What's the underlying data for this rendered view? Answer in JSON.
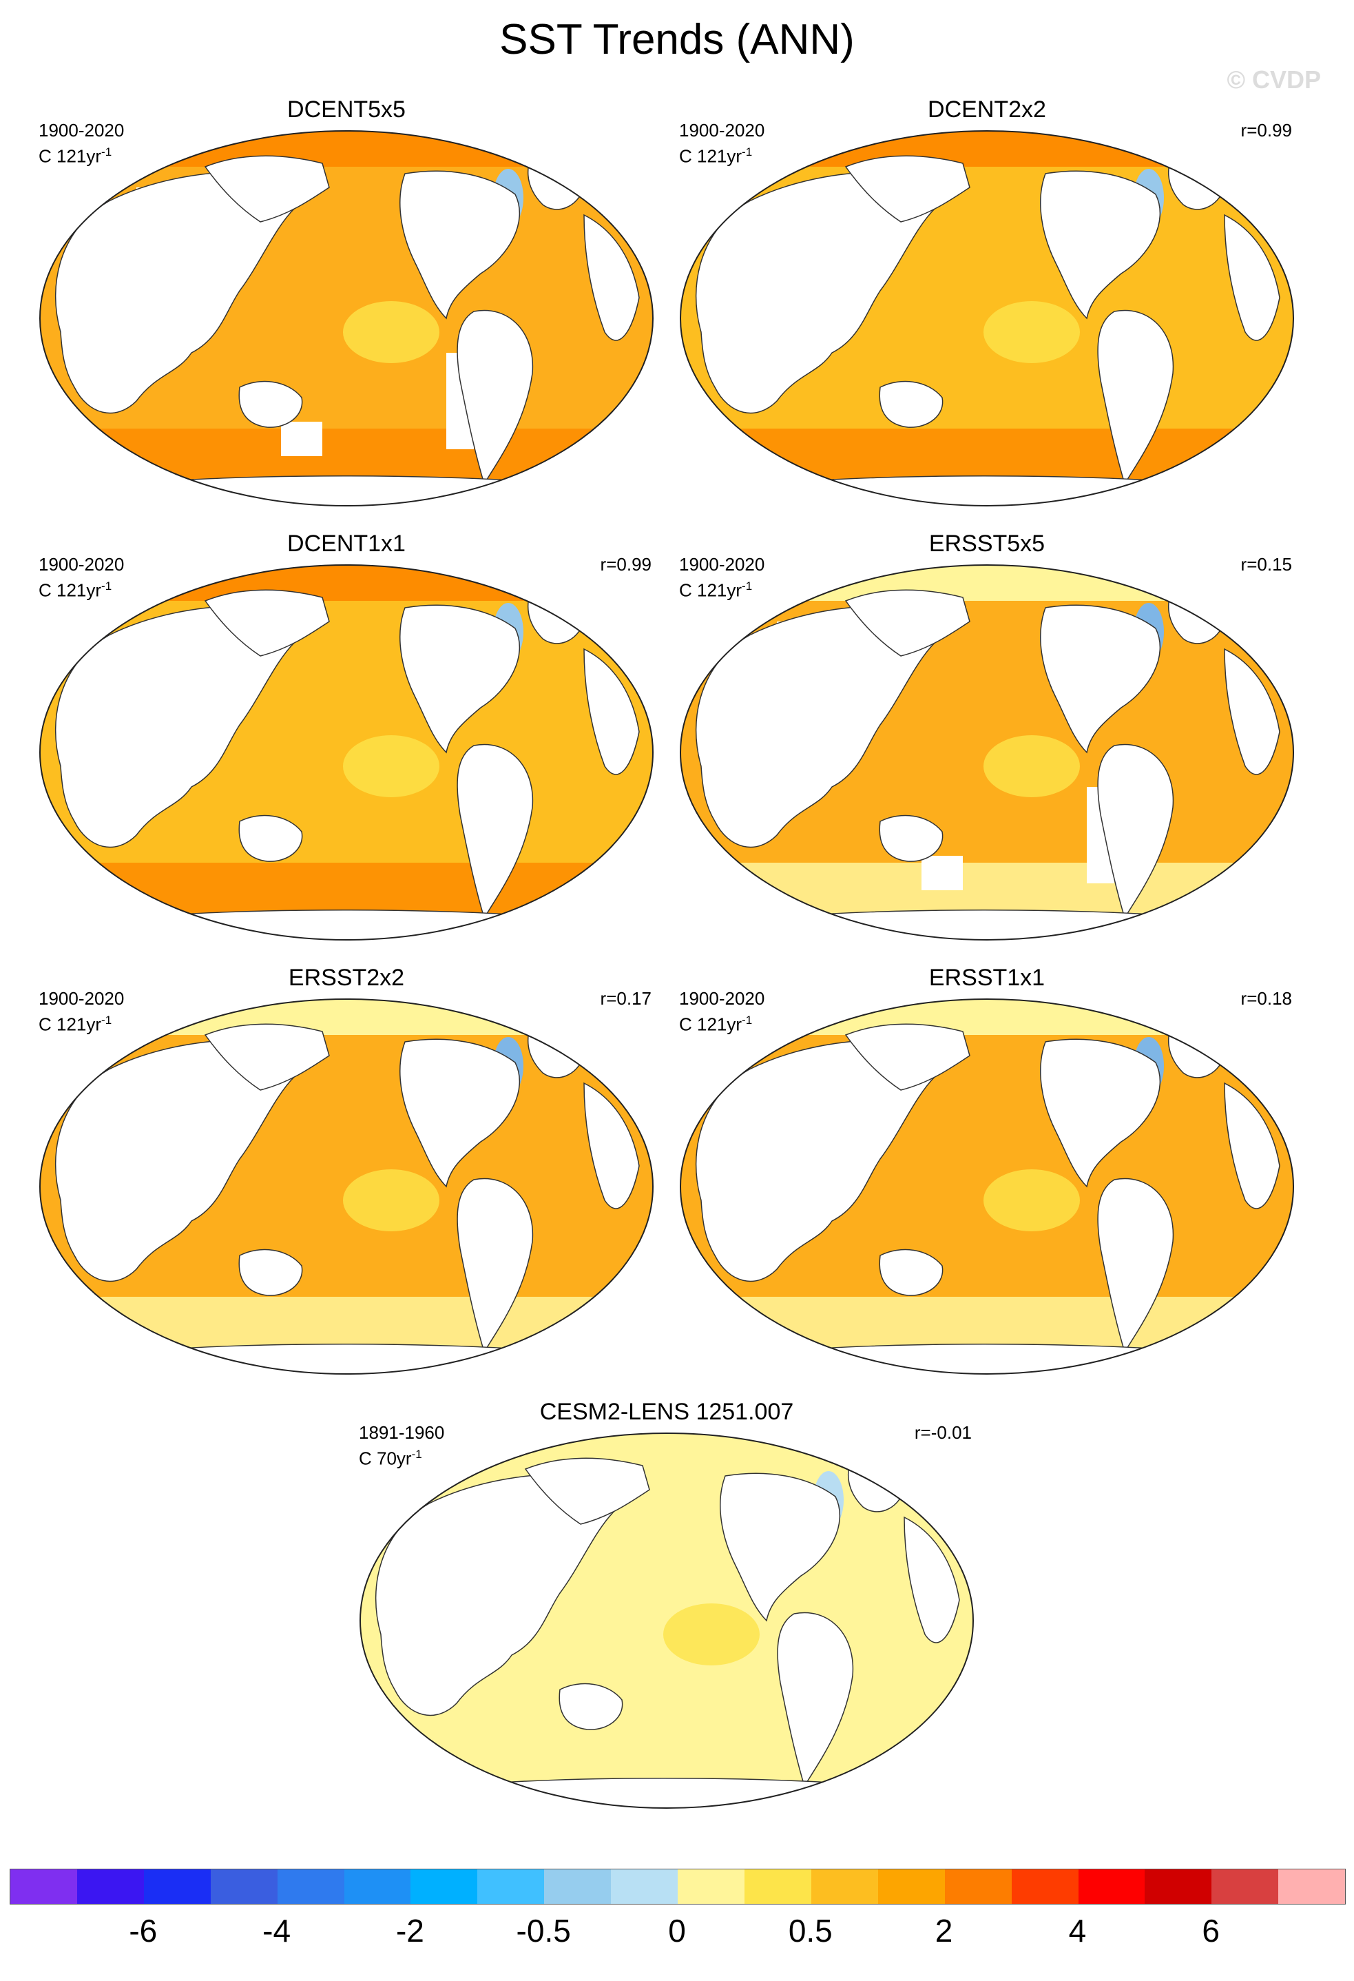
{
  "figure": {
    "title": "SST Trends (ANN)",
    "watermark": "© CVDP"
  },
  "panels": [
    {
      "name": "DCENT5x5",
      "period": "1900-2020",
      "units": "C 121yr",
      "units_sup": "-1",
      "corr": "",
      "fill": "#fdae1c",
      "mask": "coarse5",
      "arctic": "#fd8c00",
      "south": "#fd8c00",
      "blob": "#98c8ea"
    },
    {
      "name": "DCENT2x2",
      "period": "1900-2020",
      "units": "C 121yr",
      "units_sup": "-1",
      "corr": "r=0.99",
      "fill": "#fdbe20",
      "mask": "fine",
      "arctic": "#fd8c00",
      "south": "#fd8c00",
      "blob": "#98c8ea"
    },
    {
      "name": "DCENT1x1",
      "period": "1900-2020",
      "units": "C 121yr",
      "units_sup": "-1",
      "corr": "r=0.99",
      "fill": "#fdbe20",
      "mask": "fine",
      "arctic": "#fd8c00",
      "south": "#fd8c00",
      "blob": "#98c8ea"
    },
    {
      "name": "ERSST5x5",
      "period": "1900-2020",
      "units": "C 121yr",
      "units_sup": "-1",
      "corr": "r=0.15",
      "fill": "#fdae1c",
      "mask": "coarse5",
      "arctic": "#fff59a",
      "south": "#fff59a",
      "blob": "#7fb6e6"
    },
    {
      "name": "ERSST2x2",
      "period": "1900-2020",
      "units": "C 121yr",
      "units_sup": "-1",
      "corr": "r=0.17",
      "fill": "#fdae1c",
      "mask": "fine",
      "arctic": "#fff59a",
      "south": "#fff59a",
      "blob": "#7fb6e6"
    },
    {
      "name": "ERSST1x1",
      "period": "1900-2020",
      "units": "C 121yr",
      "units_sup": "-1",
      "corr": "r=0.18",
      "fill": "#fdae1c",
      "mask": "fine",
      "arctic": "#fff59a",
      "south": "#fff59a",
      "blob": "#7fb6e6"
    },
    {
      "name": "CESM2-LENS 1251.007",
      "period": "1891-1960",
      "units": "C 70yr",
      "units_sup": "-1",
      "corr": "r=-0.01",
      "fill": "#fff59a",
      "mask": "fine",
      "arctic": "#fff59a",
      "south": "#fff59a",
      "blob": "#b8ddf2"
    }
  ],
  "colorbar": {
    "colors": [
      "#7f2ff0",
      "#3b16f2",
      "#1a2ef5",
      "#3a5ee0",
      "#2f7aee",
      "#1e90f5",
      "#00b0ff",
      "#40c0ff",
      "#96cdee",
      "#b8e0f4",
      "#fff59a",
      "#fde44a",
      "#fdbe20",
      "#fda500",
      "#fd7d00",
      "#fe3c00",
      "#fe0000",
      "#d00000",
      "#d84040",
      "#ffb0b0"
    ],
    "labels": [
      "-6",
      "-4",
      "-2",
      "-0.5",
      "0",
      "0.5",
      "2",
      "4",
      "6"
    ]
  }
}
